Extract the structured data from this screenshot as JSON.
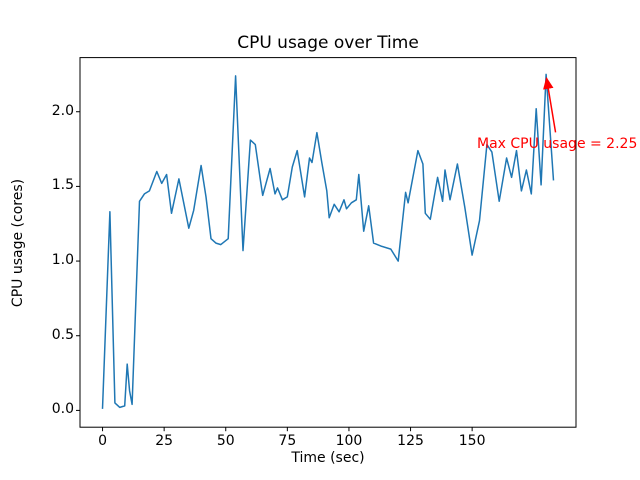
{
  "figure": {
    "title": "CPU usage over Time",
    "xlabel": "Time (sec)",
    "ylabel": "CPU usage (cores)",
    "background_color": "#ffffff",
    "spine_color": "#000000",
    "annotation": {
      "text": "Max CPU usage = 2.25",
      "color": "#ff0000"
    }
  },
  "chart_data": {
    "type": "line",
    "title": "CPU usage over Time",
    "xlabel": "Time (sec)",
    "ylabel": "CPU usage (cores)",
    "grid": false,
    "legend": null,
    "line_color": "#1f77b4",
    "line_width": 1.5,
    "xlim": [
      -9.15,
      192.15
    ],
    "ylim": [
      -0.1125,
      2.3625
    ],
    "x_ticks": [
      0,
      25,
      50,
      75,
      100,
      125,
      150
    ],
    "y_ticks": [
      0.0,
      0.5,
      1.0,
      1.5,
      2.0
    ],
    "y_tick_labels": [
      "0.0",
      "0.5",
      "1.0",
      "1.5",
      "2.0"
    ],
    "annotation": {
      "text": "Max CPU usage = 2.25",
      "xy": [
        180,
        2.25
      ],
      "color": "#ff0000"
    },
    "series": [
      {
        "name": "CPU usage",
        "x": [
          0,
          3,
          5,
          7,
          9,
          10,
          11,
          12,
          15,
          17,
          19,
          22,
          24,
          26,
          28,
          31,
          35,
          37,
          40,
          42,
          44,
          46,
          48,
          51,
          54,
          57,
          60,
          62,
          64,
          65,
          68,
          70,
          71,
          73,
          75,
          77,
          79,
          82,
          84,
          85,
          87,
          89,
          91,
          92,
          94,
          96,
          98,
          99,
          101,
          103,
          104,
          106,
          108,
          110,
          113,
          117,
          120,
          123,
          124,
          128,
          130,
          131,
          133,
          136,
          138,
          139,
          141,
          144,
          147,
          150,
          153,
          156,
          158,
          161,
          164,
          166,
          168,
          170,
          172,
          174,
          176,
          178,
          180,
          183
        ],
        "y": [
          0.01,
          1.33,
          0.05,
          0.02,
          0.03,
          0.31,
          0.13,
          0.04,
          1.4,
          1.45,
          1.47,
          1.6,
          1.52,
          1.58,
          1.32,
          1.55,
          1.22,
          1.34,
          1.64,
          1.43,
          1.15,
          1.12,
          1.11,
          1.15,
          2.24,
          1.07,
          1.81,
          1.78,
          1.55,
          1.44,
          1.62,
          1.45,
          1.49,
          1.41,
          1.43,
          1.63,
          1.74,
          1.43,
          1.69,
          1.66,
          1.86,
          1.66,
          1.47,
          1.29,
          1.38,
          1.33,
          1.41,
          1.35,
          1.39,
          1.41,
          1.58,
          1.2,
          1.37,
          1.12,
          1.1,
          1.08,
          1.0,
          1.46,
          1.39,
          1.74,
          1.65,
          1.32,
          1.28,
          1.56,
          1.4,
          1.61,
          1.41,
          1.65,
          1.36,
          1.04,
          1.27,
          1.78,
          1.73,
          1.4,
          1.69,
          1.56,
          1.74,
          1.47,
          1.61,
          1.45,
          2.02,
          1.51,
          2.25,
          1.54
        ]
      }
    ]
  }
}
